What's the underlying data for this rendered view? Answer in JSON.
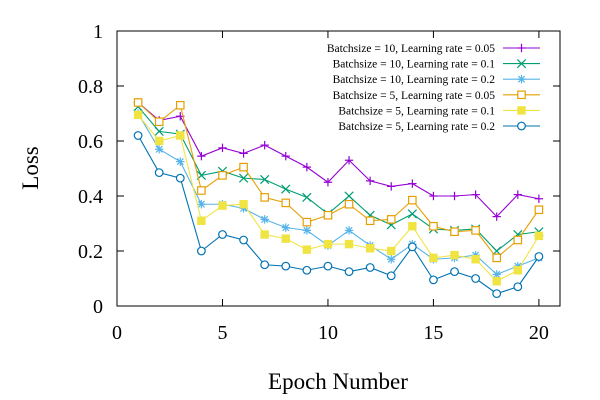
{
  "chart_data": {
    "type": "line",
    "xlabel": "Epoch Number",
    "ylabel": "Loss",
    "xlim": [
      0,
      21
    ],
    "ylim": [
      0,
      1
    ],
    "xticks": [
      0,
      5,
      10,
      15,
      20
    ],
    "yticks": [
      0,
      0.2,
      0.4,
      0.6,
      0.8,
      1
    ],
    "ytick_labels": [
      "0",
      "0.2",
      "0.4",
      "0.6",
      "0.8",
      "1"
    ],
    "grid": false,
    "legend_position": "top-right",
    "x": [
      1,
      2,
      3,
      4,
      5,
      6,
      7,
      8,
      9,
      10,
      11,
      12,
      13,
      14,
      15,
      16,
      17,
      18,
      19,
      20
    ],
    "series": [
      {
        "name": "Batchsize = 10, Learning rate = 0.05",
        "color": "#9400d3",
        "marker": "plus",
        "values": [
          0.74,
          0.675,
          0.69,
          0.545,
          0.575,
          0.555,
          0.585,
          0.545,
          0.505,
          0.45,
          0.53,
          0.455,
          0.435,
          0.445,
          0.4,
          0.4,
          0.405,
          0.325,
          0.405,
          0.39
        ]
      },
      {
        "name": "Batchsize = 10, Learning rate = 0.1",
        "color": "#009e73",
        "marker": "cross",
        "values": [
          0.725,
          0.635,
          0.625,
          0.475,
          0.49,
          0.465,
          0.46,
          0.425,
          0.395,
          0.335,
          0.4,
          0.33,
          0.295,
          0.335,
          0.28,
          0.275,
          0.28,
          0.2,
          0.26,
          0.27
        ]
      },
      {
        "name": "Batchsize = 10, Learning rate = 0.2",
        "color": "#56b4e9",
        "marker": "star",
        "values": [
          0.7,
          0.57,
          0.525,
          0.37,
          0.37,
          0.355,
          0.315,
          0.285,
          0.275,
          0.22,
          0.275,
          0.22,
          0.17,
          0.225,
          0.17,
          0.175,
          0.185,
          0.115,
          0.145,
          0.175
        ]
      },
      {
        "name": "Batchsize = 5, Learning rate = 0.05",
        "color": "#e69f00",
        "marker": "square-open",
        "values": [
          0.74,
          0.67,
          0.73,
          0.42,
          0.475,
          0.505,
          0.395,
          0.375,
          0.305,
          0.33,
          0.37,
          0.31,
          0.315,
          0.385,
          0.29,
          0.27,
          0.275,
          0.175,
          0.24,
          0.35
        ]
      },
      {
        "name": "Batchsize = 5, Learning rate = 0.1",
        "color": "#f0e442",
        "marker": "square-filled",
        "values": [
          0.695,
          0.6,
          0.62,
          0.31,
          0.365,
          0.37,
          0.26,
          0.245,
          0.205,
          0.225,
          0.225,
          0.21,
          0.2,
          0.29,
          0.175,
          0.185,
          0.17,
          0.09,
          0.13,
          0.255
        ]
      },
      {
        "name": "Batchsize = 5, Learning rate = 0.2",
        "color": "#0072b2",
        "marker": "circle-open",
        "values": [
          0.62,
          0.485,
          0.465,
          0.2,
          0.26,
          0.24,
          0.15,
          0.145,
          0.13,
          0.145,
          0.125,
          0.14,
          0.11,
          0.215,
          0.095,
          0.125,
          0.1,
          0.045,
          0.07,
          0.18
        ]
      }
    ]
  }
}
